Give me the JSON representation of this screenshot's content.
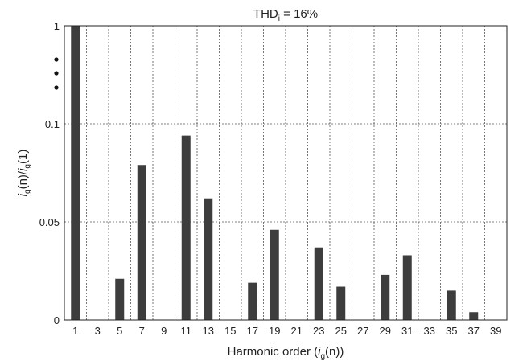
{
  "chart_data": {
    "type": "bar",
    "title": "THD",
    "title_sub": "i",
    "title_suffix": " = 16%",
    "xlabel": "Harmonic order (",
    "xlabel_var": "i",
    "xlabel_sub": "g",
    "xlabel_tail": "(n))",
    "ylabel": {
      "num_var": "i",
      "num_sub": "g",
      "num_tail": "(n)/",
      "den_var": "i",
      "den_sub": "g",
      "den_tail": "(1)"
    },
    "y_axis_break": true,
    "grid": true,
    "categories": [
      1,
      3,
      5,
      7,
      9,
      11,
      13,
      15,
      17,
      19,
      21,
      23,
      25,
      27,
      29,
      31,
      33,
      35,
      37,
      39
    ],
    "ytick_labels": [
      {
        "value": 0,
        "label": "0"
      },
      {
        "value": 0.05,
        "label": "0.05"
      },
      {
        "value": 0.1,
        "label": "0.1"
      },
      {
        "value": 1,
        "label": "1"
      }
    ],
    "ylim": [
      0,
      0.13
    ],
    "values": [
      1,
      0,
      0.021,
      0.079,
      0,
      0.094,
      0.062,
      0,
      0.019,
      0.046,
      0,
      0.037,
      0.017,
      0,
      0.023,
      0.033,
      0,
      0.015,
      0.004,
      0
    ]
  }
}
